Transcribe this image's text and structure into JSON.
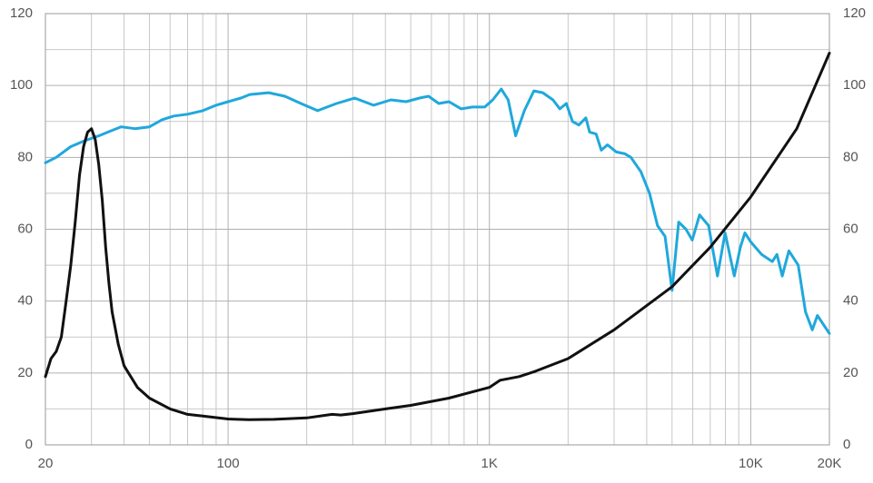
{
  "chart_data": {
    "type": "line",
    "xscale": "log",
    "grid": true,
    "xlim": [
      20,
      20000
    ],
    "ylim": [
      0,
      120
    ],
    "y2lim": [
      0,
      120
    ],
    "xticks": [
      20,
      100,
      {
        "value": 1000,
        "label": "1K"
      },
      {
        "value": 10000,
        "label": "10K"
      },
      {
        "value": 20000,
        "label": "20K"
      }
    ],
    "xminorticks": [
      30,
      40,
      50,
      60,
      70,
      80,
      90,
      200,
      300,
      400,
      500,
      600,
      700,
      800,
      900,
      2000,
      3000,
      4000,
      5000,
      6000,
      7000,
      8000,
      9000
    ],
    "yticks": [
      0,
      20,
      40,
      60,
      80,
      100,
      120
    ],
    "yminorticks": [
      10,
      30,
      50,
      70,
      90,
      110
    ],
    "y2ticks": [
      0,
      20,
      40,
      60,
      80,
      100,
      120
    ],
    "series": [
      {
        "color": "#1fa8dc",
        "x": [
          20,
          22,
          25,
          28,
          32,
          36,
          39,
          44,
          50,
          56,
          62,
          70,
          80,
          90,
          100,
          112,
          121,
          143,
          165,
          190,
          220,
          260,
          305,
          360,
          420,
          480,
          540,
          585,
          640,
          700,
          780,
          860,
          960,
          1030,
          1110,
          1180,
          1260,
          1360,
          1480,
          1600,
          1750,
          1860,
          1970,
          2080,
          2200,
          2340,
          2420,
          2560,
          2680,
          2830,
          3060,
          3300,
          3480,
          3800,
          4100,
          4400,
          4700,
          5000,
          5300,
          5650,
          5970,
          6370,
          6900,
          7460,
          7980,
          8650,
          9130,
          9500,
          10000,
          11000,
          12100,
          12600,
          13200,
          14000,
          15200,
          16200,
          17200,
          18000,
          20000
        ],
        "values": [
          78.5,
          80,
          83,
          84.5,
          86,
          87.5,
          88.5,
          88,
          88.5,
          90.5,
          91.5,
          92,
          93,
          94.5,
          95.5,
          96.5,
          97.5,
          98,
          97,
          95,
          93,
          95,
          96.5,
          94.5,
          96,
          95.5,
          96.5,
          97,
          95,
          95.5,
          93.5,
          94,
          94,
          96,
          99,
          96,
          86,
          93,
          98.5,
          98,
          96,
          93.5,
          95,
          90,
          89,
          91,
          87,
          86.5,
          82,
          83.5,
          81.5,
          81,
          80,
          76,
          70,
          61,
          58,
          43,
          62,
          60,
          57,
          64,
          61,
          47,
          59,
          47,
          55,
          59,
          56.5,
          53,
          51,
          53,
          47,
          54,
          50,
          37,
          32,
          36,
          31
        ]
      },
      {
        "color": "#111111",
        "x": [
          20,
          21,
          22,
          23,
          24,
          25,
          26,
          27,
          28,
          29,
          30,
          31,
          32,
          33,
          34,
          35,
          36,
          38,
          40,
          45,
          50,
          60,
          70,
          80,
          100,
          120,
          150,
          200,
          250,
          270,
          300,
          400,
          500,
          700,
          1000,
          1100,
          1300,
          1500,
          2000,
          3000,
          5000,
          7000,
          10000,
          15000,
          20000
        ],
        "values": [
          19,
          24,
          26,
          30,
          40,
          50,
          62,
          75,
          83,
          87,
          88,
          85,
          78,
          68,
          55,
          45,
          37,
          28,
          22,
          16,
          13,
          10,
          8.5,
          8,
          7.2,
          7,
          7.1,
          7.5,
          8.5,
          8.3,
          8.7,
          10,
          11,
          13,
          16,
          18,
          19,
          20.5,
          24,
          32,
          44,
          55,
          69,
          88,
          109
        ]
      }
    ]
  }
}
